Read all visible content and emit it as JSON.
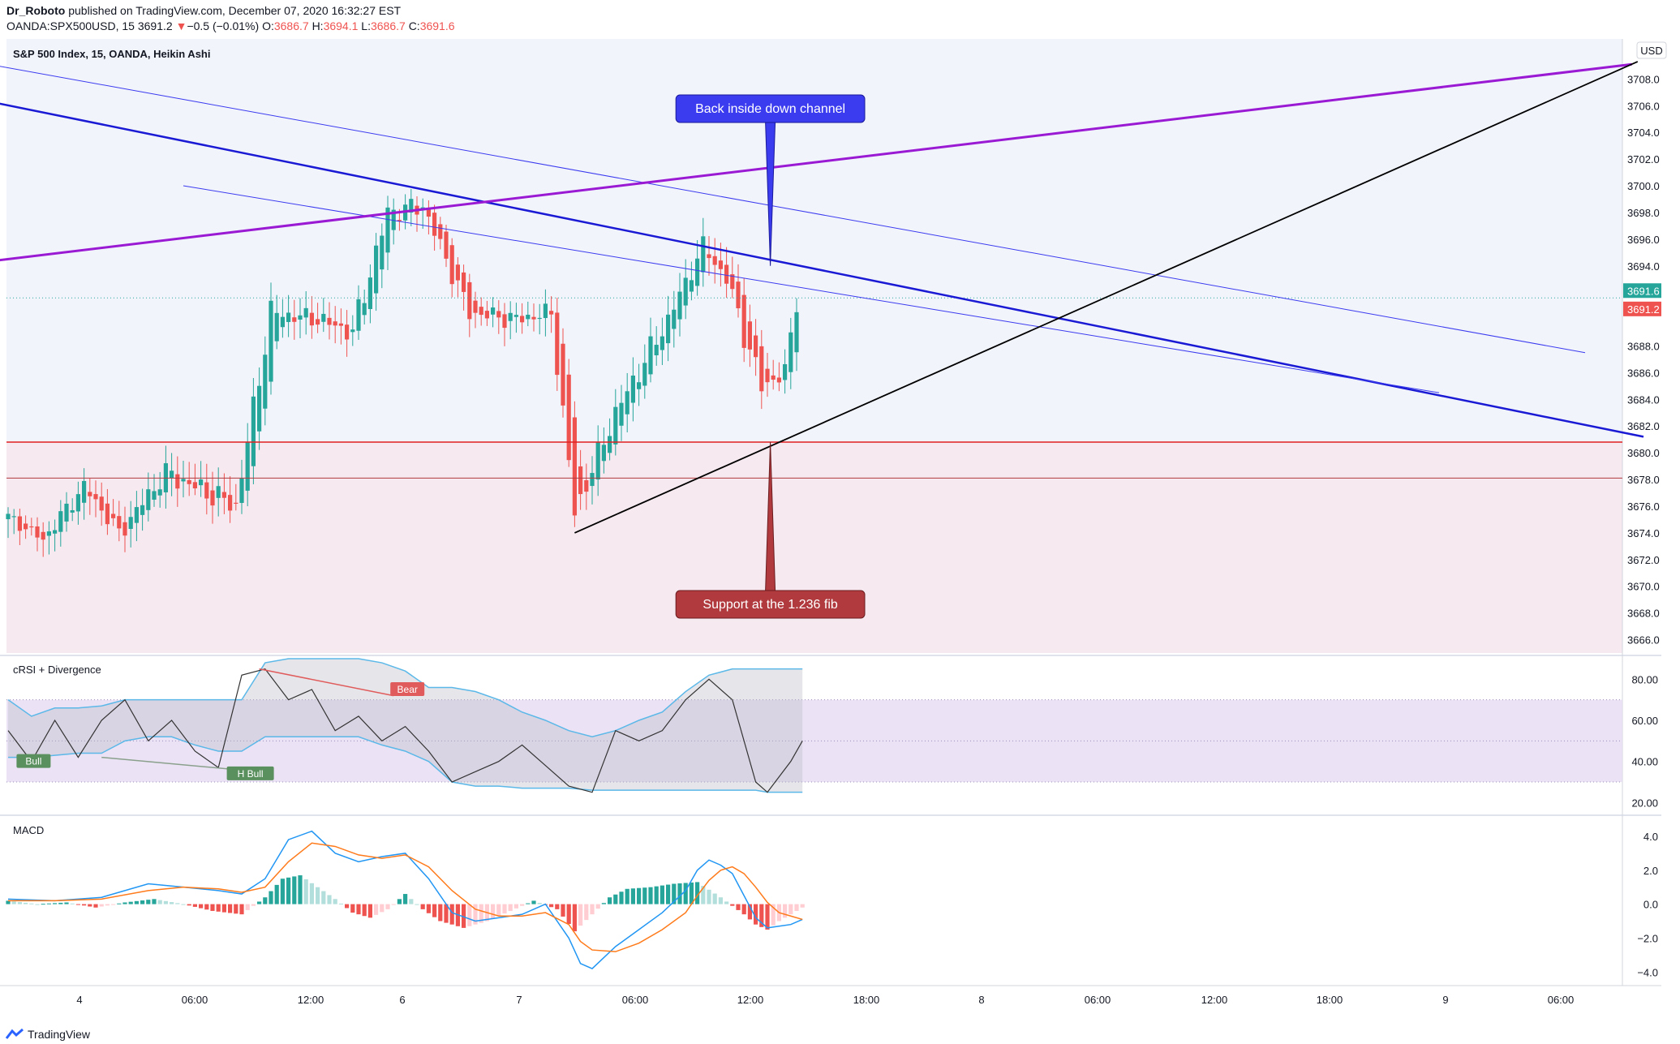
{
  "header": {
    "published_by": "Dr_Roboto",
    "published_text": "published on TradingView.com, December 07, 2020 16:32:27 EST",
    "symbol": "OANDA:SPX500USD, 15",
    "last": "3691.2",
    "change": "−0.5 (−0.01%)",
    "o_label": "O:",
    "o": "3686.7",
    "h_label": "H:",
    "h": "3694.1",
    "l_label": "L:",
    "l": "3686.7",
    "c_label": "C:",
    "c": "3691.6"
  },
  "colors": {
    "up": "#26a69a",
    "down": "#ef5350",
    "channel": "#1a1ad4",
    "purple": "#9a1ad4",
    "support": "#e02020",
    "callout_blue": "#3b3bef",
    "callout_red": "#b03a3e",
    "macd": "#2196f3",
    "signal": "#ff7a1a"
  },
  "chart_data": [
    {
      "type": "candlestick",
      "title": "S&P 500 Index, 15, OANDA, Heikin Ashi",
      "currency": "USD",
      "ylim": [
        3665.0,
        3711.0
      ],
      "y_ticks": [
        "3708.0",
        "3706.0",
        "3704.0",
        "3702.0",
        "3700.0",
        "3698.0",
        "3696.0",
        "3694.0",
        "3688.0",
        "3686.0",
        "3684.0",
        "3682.0",
        "3680.0",
        "3678.0",
        "3676.0",
        "3674.0",
        "3672.0",
        "3670.0",
        "3668.0",
        "3666.0"
      ],
      "price_tags": [
        {
          "label": "3691.6",
          "value": 3691.6,
          "color": "#26a69a"
        },
        {
          "label": "3691.2",
          "value": 3691.2,
          "color": "#ef5350"
        }
      ],
      "x_labels": [
        "4",
        "06:00",
        "12:00",
        "6",
        "7",
        "06:00",
        "12:00",
        "18:00",
        "8",
        "06:00",
        "12:00",
        "18:00",
        "9",
        "06:00"
      ],
      "bars_total": 140,
      "segments": [
        {
          "from": 0,
          "to": 7,
          "close": 3673.5,
          "amp": 0.6
        },
        {
          "from": 7,
          "to": 14,
          "close": 3677.5,
          "amp": 0.8
        },
        {
          "from": 14,
          "to": 20,
          "close": 3674.0,
          "amp": 0.8
        },
        {
          "from": 20,
          "to": 28,
          "close": 3678.5,
          "amp": 1.0
        },
        {
          "from": 28,
          "to": 40,
          "close": 3676.0,
          "amp": 1.2
        },
        {
          "from": 40,
          "to": 46,
          "close": 3690.5,
          "amp": 1.3
        },
        {
          "from": 46,
          "to": 54,
          "close": 3690.0,
          "amp": 0.9
        },
        {
          "from": 54,
          "to": 60,
          "close": 3689.0,
          "amp": 1.0
        },
        {
          "from": 60,
          "to": 66,
          "close": 3698.0,
          "amp": 1.3
        },
        {
          "from": 66,
          "to": 72,
          "close": 3698.5,
          "amp": 1.0
        },
        {
          "from": 72,
          "to": 80,
          "close": 3690.5,
          "amp": 1.0
        },
        {
          "from": 80,
          "to": 88,
          "close": 3690.0,
          "amp": 0.9
        },
        {
          "from": 88,
          "to": 94,
          "close": 3690.5,
          "amp": 0.9
        },
        {
          "from": 94,
          "to": 98,
          "close": 3675.5,
          "amp": 1.2
        },
        {
          "from": 98,
          "to": 105,
          "close": 3683.0,
          "amp": 1.1
        },
        {
          "from": 105,
          "to": 114,
          "close": 3690.0,
          "amp": 1.2
        },
        {
          "from": 114,
          "to": 120,
          "close": 3695.5,
          "amp": 0.9
        },
        {
          "from": 120,
          "to": 124,
          "close": 3693.0,
          "amp": 0.9
        },
        {
          "from": 124,
          "to": 130,
          "close": 3685.0,
          "amp": 1.3
        },
        {
          "from": 130,
          "to": 134,
          "close": 3686.0,
          "amp": 1.0
        },
        {
          "from": 134,
          "to": 136,
          "close": 3691.4,
          "amp": 1.0
        }
      ],
      "lines": [
        {
          "name": "down-channel-lower",
          "x1": -2,
          "y1": 3706.2,
          "x2": 280,
          "y2": 3681.2,
          "color": "#1a1ad4",
          "width": 2.5
        },
        {
          "name": "down-channel-upper",
          "x1": -2,
          "y1": 3709.0,
          "x2": 270,
          "y2": 3687.5,
          "color": "#3b3bef",
          "width": 1
        },
        {
          "name": "down-channel-inner",
          "x1": 30,
          "y1": 3700.0,
          "x2": 245,
          "y2": 3684.5,
          "color": "#3b3bef",
          "width": 1
        },
        {
          "name": "purple-trend",
          "x1": -2,
          "y1": 3694.4,
          "x2": 278,
          "y2": 3709.1,
          "color": "#9a1ad4",
          "width": 3
        },
        {
          "name": "black-trend",
          "x1": 97,
          "y1": 3674.0,
          "x2": 279,
          "y2": 3709.3,
          "color": "#000000",
          "width": 1.8
        }
      ],
      "support_lines": [
        {
          "value": 3680.8,
          "color": "#e02020",
          "width": 1.5
        },
        {
          "value": 3678.1,
          "color": "#b03a3e",
          "width": 1
        }
      ],
      "callouts": [
        {
          "text": "Back inside down channel",
          "tip_x": 130.5,
          "tip_y": 3694.0,
          "bg": "#3b3bef"
        },
        {
          "text": "Support at the 1.236 fib",
          "tip_x": 130.5,
          "tip_y": 3680.8,
          "bg": "#b03a3e"
        }
      ]
    },
    {
      "type": "line",
      "title": "cRSI + Divergence",
      "ylim": [
        15,
        90
      ],
      "y_ticks": [
        "80.00",
        "60.00",
        "40.00",
        "20.00"
      ],
      "band": [
        30,
        70
      ],
      "midline": 50,
      "x": [
        0,
        4,
        8,
        12,
        16,
        20,
        24,
        28,
        32,
        36,
        40,
        44,
        48,
        52,
        56,
        60,
        64,
        68,
        72,
        76,
        80,
        84,
        88,
        92,
        96,
        100,
        104,
        108,
        112,
        116,
        120,
        124,
        128,
        130,
        134,
        136
      ],
      "values": [
        55,
        40,
        60,
        42,
        60,
        70,
        50,
        60,
        45,
        37,
        82,
        85,
        70,
        75,
        55,
        62,
        50,
        57,
        45,
        30,
        35,
        40,
        48,
        38,
        28,
        25,
        55,
        50,
        55,
        70,
        80,
        70,
        30,
        25,
        40,
        50
      ],
      "upper": [
        70,
        62,
        66,
        66,
        67,
        70,
        70,
        70,
        70,
        70,
        70,
        88,
        90,
        90,
        90,
        90,
        88,
        84,
        76,
        76,
        74,
        70,
        64,
        60,
        55,
        52,
        55,
        60,
        64,
        74,
        82,
        85,
        85,
        85,
        85,
        85
      ],
      "lower": [
        42,
        42,
        43,
        44,
        44,
        50,
        52,
        52,
        48,
        45,
        45,
        52,
        52,
        52,
        52,
        52,
        48,
        45,
        40,
        30,
        28,
        28,
        27,
        27,
        27,
        26,
        26,
        26,
        26,
        26,
        26,
        26,
        26,
        25,
        25,
        25
      ],
      "labels": [
        {
          "text": "Bull",
          "x": 2,
          "value": 40,
          "color": "#5a8f5e"
        },
        {
          "text": "H Bull",
          "x": 38,
          "value": 34,
          "color": "#5a8f5e"
        },
        {
          "text": "Bear",
          "x": 66,
          "value": 75,
          "color": "#e05c5c"
        }
      ]
    },
    {
      "type": "bar",
      "title": "MACD",
      "ylim": [
        -4.8,
        5.0
      ],
      "y_ticks": [
        "4.0",
        "2.0",
        "0.0",
        "−2.0",
        "−4.0"
      ],
      "hist_x": [
        0,
        5,
        10,
        15,
        20,
        25,
        30,
        35,
        40,
        44,
        47,
        50,
        53,
        56,
        59,
        62,
        65,
        68,
        71,
        74,
        78,
        82,
        86,
        90,
        94,
        97,
        100,
        103,
        106,
        110,
        114,
        118,
        122,
        126,
        128,
        130,
        132,
        136
      ],
      "hist": [
        0.2,
        0.0,
        0.1,
        -0.2,
        0.1,
        0.3,
        0.0,
        -0.4,
        -0.6,
        0.4,
        1.5,
        1.7,
        1.0,
        0.3,
        -0.5,
        -0.8,
        -0.3,
        0.6,
        -0.3,
        -1.0,
        -1.4,
        -1.0,
        -0.4,
        0.2,
        -0.3,
        -1.6,
        -0.6,
        0.4,
        0.9,
        1.0,
        1.2,
        1.3,
        0.4,
        -0.6,
        -1.2,
        -1.5,
        -1.0,
        -0.2
      ],
      "macd_x": [
        0,
        8,
        16,
        24,
        30,
        36,
        40,
        44,
        48,
        52,
        56,
        60,
        64,
        68,
        72,
        76,
        80,
        84,
        88,
        92,
        96,
        98,
        100,
        104,
        108,
        112,
        116,
        118,
        120,
        122,
        124,
        126,
        128,
        130,
        132,
        134,
        136
      ],
      "macd": [
        0.3,
        0.2,
        0.4,
        1.2,
        1.0,
        0.8,
        0.6,
        1.5,
        3.8,
        4.3,
        3.0,
        2.5,
        2.8,
        3.0,
        1.5,
        -0.5,
        -1.0,
        -0.8,
        -0.6,
        0.0,
        -2.0,
        -3.5,
        -3.8,
        -2.5,
        -1.5,
        -0.5,
        0.8,
        2.0,
        2.6,
        2.3,
        1.8,
        0.5,
        -0.8,
        -1.4,
        -1.3,
        -1.2,
        -0.9
      ],
      "signal": [
        0.2,
        0.2,
        0.3,
        0.8,
        1.0,
        0.9,
        0.7,
        1.0,
        2.5,
        3.6,
        3.4,
        2.9,
        2.7,
        2.9,
        2.2,
        0.8,
        -0.3,
        -0.7,
        -0.7,
        -0.5,
        -1.2,
        -2.2,
        -2.7,
        -2.8,
        -2.3,
        -1.5,
        -0.5,
        0.5,
        1.4,
        2.0,
        2.2,
        1.8,
        1.0,
        0.1,
        -0.5,
        -0.7,
        -0.9
      ]
    }
  ],
  "footer": {
    "brand": "TradingView"
  }
}
